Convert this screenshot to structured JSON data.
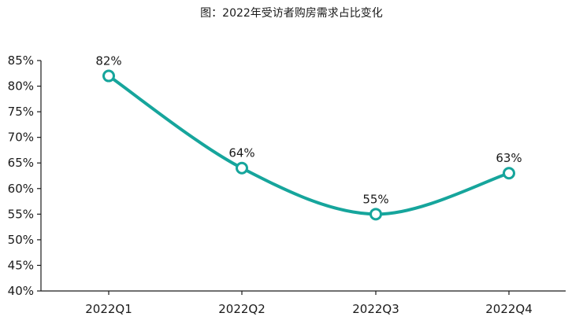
{
  "title": "图：2022年受访者购房需求占比变化",
  "colors": {
    "series": "#16a59c",
    "axis": "#1a1a1a",
    "marker_fill": "#ffffff"
  },
  "chart_data": {
    "type": "line",
    "title": "图：2022年受访者购房需求占比变化",
    "categories": [
      "2022Q1",
      "2022Q2",
      "2022Q3",
      "2022Q4"
    ],
    "series": [
      {
        "values": [
          82,
          64,
          55,
          63
        ],
        "labels": [
          "82%",
          "64%",
          "55%",
          "63%"
        ],
        "smooth": true
      }
    ],
    "ylim": [
      40,
      85
    ],
    "yticks": [
      40,
      45,
      50,
      55,
      60,
      65,
      70,
      75,
      80,
      85
    ],
    "ytick_format": "percent",
    "grid": false,
    "legend": "none",
    "xlabel": "",
    "ylabel": ""
  }
}
